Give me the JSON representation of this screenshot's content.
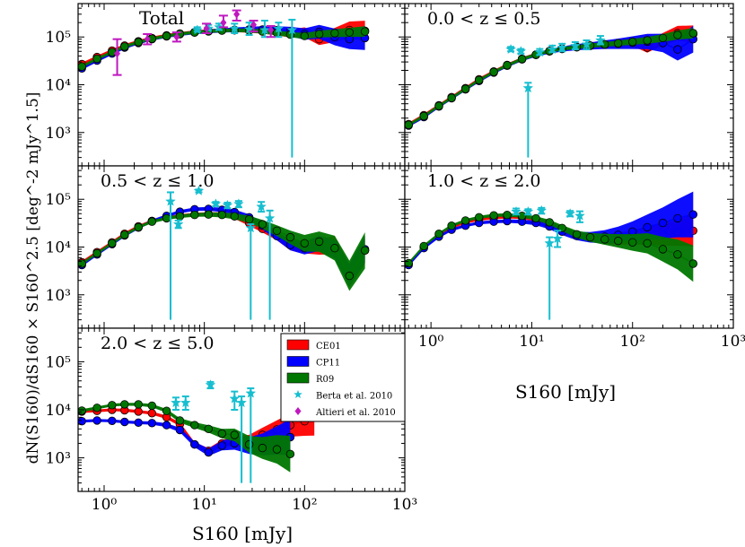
{
  "figure": {
    "ylabel": "dN(S160)/dS160 × S160^2.5  [deg^-2 mJy^1.5]",
    "xlabel": "S160 [mJy]"
  },
  "colors": {
    "CE01": "#ff0000",
    "CP11": "#0000ff",
    "R09": "#007700",
    "Berta": "#17becf",
    "Altieri": "#bf18bf"
  },
  "legend": {
    "items": [
      {
        "key": "CE01",
        "label": "CE01",
        "kind": "band"
      },
      {
        "key": "CP11",
        "label": "CP11",
        "kind": "band"
      },
      {
        "key": "R09",
        "label": "R09",
        "kind": "band"
      },
      {
        "key": "Berta",
        "label": "Berta et al. 2010",
        "kind": "star"
      },
      {
        "key": "Altieri",
        "label": "Altieri et al. 2010",
        "kind": "diamond"
      }
    ]
  },
  "chart_data": [
    {
      "type": "line",
      "title": "Total",
      "xscale": "log",
      "yscale": "log",
      "xlim": [
        0.55,
        1000
      ],
      "ylim": [
        200,
        500000
      ],
      "xticks": [
        1,
        10,
        100,
        1000
      ],
      "xticklabels": [
        "",
        "",
        "",
        ""
      ],
      "yticks": [
        1000,
        10000,
        100000
      ],
      "yticklabels": [
        "10^3",
        "10^4",
        "10^5"
      ],
      "x": [
        0.6,
        0.85,
        1.2,
        1.6,
        2.2,
        3.0,
        4.2,
        5.7,
        8,
        11,
        15,
        20,
        28,
        38,
        53,
        72,
        100,
        140,
        200,
        280,
        400
      ],
      "series": [
        {
          "name": "CE01",
          "values": [
            27000,
            38000,
            52000,
            66000,
            81000,
            95000,
            108000,
            118000,
            127000,
            134000,
            138000,
            140000,
            139000,
            135000,
            128000,
            118000,
            125000,
            90000,
            110000,
            140000,
            135000
          ],
          "band_tail": 0.18
        },
        {
          "name": "CP11",
          "values": [
            22000,
            32000,
            45000,
            60000,
            75000,
            90000,
            103000,
            114000,
            124000,
            131000,
            137000,
            141000,
            144000,
            143000,
            139000,
            130000,
            115000,
            128000,
            100000,
            90000,
            95000
          ],
          "band_tail": 0.22
        },
        {
          "name": "R09",
          "values": [
            24000,
            35000,
            48000,
            63000,
            78000,
            92000,
            105000,
            116000,
            125000,
            132000,
            136000,
            138000,
            136000,
            130000,
            122000,
            112000,
            105000,
            115000,
            120000,
            125000,
            130000
          ],
          "band_tail": 0.08
        }
      ],
      "berta": [
        {
          "x": 8.5,
          "y": 140000,
          "lo": 130000,
          "hi": 160000
        },
        {
          "x": 11,
          "y": 150000,
          "lo": 140000,
          "hi": 180000
        },
        {
          "x": 14,
          "y": 160000,
          "lo": 140000,
          "hi": 190000
        },
        {
          "x": 20,
          "y": 150000,
          "lo": 120000,
          "hi": 190000
        },
        {
          "x": 28,
          "y": 145000,
          "lo": 110000,
          "hi": 200000
        },
        {
          "x": 40,
          "y": 140000,
          "lo": 100000,
          "hi": 220000
        },
        {
          "x": 55,
          "y": 150000,
          "lo": 100000,
          "hi": 200000
        },
        {
          "x": 75,
          "y": 140000,
          "lo": 300,
          "hi": 230000
        }
      ],
      "altieri": [
        {
          "x": 1.35,
          "y": 45000,
          "lo": 16000,
          "hi": 90000
        },
        {
          "x": 2.7,
          "y": 90000,
          "lo": 70000,
          "hi": 115000
        },
        {
          "x": 5.3,
          "y": 100000,
          "lo": 80000,
          "hi": 125000
        },
        {
          "x": 10.5,
          "y": 150000,
          "lo": 120000,
          "hi": 190000
        },
        {
          "x": 15.5,
          "y": 200000,
          "lo": 160000,
          "hi": 280000
        },
        {
          "x": 21,
          "y": 300000,
          "lo": 220000,
          "hi": 360000
        },
        {
          "x": 31,
          "y": 180000,
          "lo": 130000,
          "hi": 220000
        },
        {
          "x": 46,
          "y": 140000,
          "lo": 100000,
          "hi": 170000
        }
      ]
    },
    {
      "type": "line",
      "title": "0.0 < z ≤ 0.5",
      "xscale": "log",
      "yscale": "log",
      "xlim": [
        0.55,
        1000
      ],
      "ylim": [
        200,
        500000
      ],
      "xticks": [
        1,
        10,
        100,
        1000
      ],
      "xticklabels": [
        "",
        "",
        "",
        ""
      ],
      "yticks": [
        1000,
        10000,
        100000
      ],
      "yticklabels": [
        "",
        "",
        ""
      ],
      "x": [
        0.6,
        0.85,
        1.2,
        1.6,
        2.2,
        3.0,
        4.2,
        5.7,
        8,
        11,
        15,
        20,
        28,
        38,
        53,
        72,
        100,
        140,
        200,
        280,
        400
      ],
      "series": [
        {
          "name": "CE01",
          "values": [
            1500,
            2300,
            3700,
            5500,
            8500,
            13000,
            19000,
            26000,
            35000,
            43000,
            51000,
            57000,
            62000,
            66000,
            70000,
            74000,
            80000,
            60000,
            90000,
            120000,
            115000
          ],
          "band_tail": 0.15
        },
        {
          "name": "CP11",
          "values": [
            1400,
            2100,
            3500,
            5200,
            8000,
            12000,
            18000,
            25000,
            34000,
            42000,
            50000,
            56000,
            61000,
            65000,
            69000,
            72000,
            76000,
            80000,
            75000,
            55000,
            90000
          ],
          "band_tail": 0.25
        },
        {
          "name": "R09",
          "values": [
            1450,
            2200,
            3600,
            5300,
            8200,
            12500,
            18500,
            25500,
            34500,
            42500,
            50500,
            56500,
            61500,
            66000,
            70000,
            74000,
            79000,
            85000,
            95000,
            110000,
            120000
          ],
          "band_tail": 0.08
        }
      ],
      "berta": [
        {
          "x": 6.2,
          "y": 55000,
          "lo": 50000,
          "hi": 62000
        },
        {
          "x": 7.8,
          "y": 50000,
          "lo": 45000,
          "hi": 56000
        },
        {
          "x": 9.2,
          "y": 8500,
          "lo": 300,
          "hi": 11000
        },
        {
          "x": 12,
          "y": 48000,
          "lo": 42000,
          "hi": 56000
        },
        {
          "x": 16,
          "y": 55000,
          "lo": 48000,
          "hi": 66000
        },
        {
          "x": 20,
          "y": 60000,
          "lo": 50000,
          "hi": 72000
        },
        {
          "x": 27,
          "y": 65000,
          "lo": 55000,
          "hi": 78000
        },
        {
          "x": 35,
          "y": 70000,
          "lo": 55000,
          "hi": 85000
        },
        {
          "x": 48,
          "y": 85000,
          "lo": 70000,
          "hi": 105000
        }
      ],
      "altieri": []
    },
    {
      "type": "line",
      "title": "0.5 < z ≤ 1.0",
      "xscale": "log",
      "yscale": "log",
      "xlim": [
        0.55,
        1000
      ],
      "ylim": [
        200,
        500000
      ],
      "xticks": [
        1,
        10,
        100,
        1000
      ],
      "xticklabels": [
        "",
        "",
        "",
        ""
      ],
      "yticks": [
        1000,
        10000,
        100000
      ],
      "yticklabels": [
        "10^3",
        "10^4",
        "10^5"
      ],
      "x": [
        0.6,
        0.85,
        1.2,
        1.6,
        2.2,
        3.0,
        4.2,
        5.7,
        8,
        11,
        15,
        20,
        28,
        38,
        53,
        72,
        100,
        140,
        200,
        280,
        400
      ],
      "series": [
        {
          "name": "CE01",
          "values": [
            4800,
            7800,
            12500,
            19000,
            27000,
            35000,
            41000,
            45000,
            48000,
            49000,
            48000,
            44000,
            32000,
            24000,
            17000,
            11000,
            10000,
            10000,
            11000,
            2500,
            8500
          ],
          "band_tail": 0.25
        },
        {
          "name": "CP11",
          "values": [
            4200,
            7000,
            11500,
            17500,
            25500,
            35000,
            45000,
            55000,
            62000,
            63000,
            60000,
            54000,
            42000,
            28000,
            17000,
            11000,
            9500,
            12000,
            9000,
            2600,
            9000
          ],
          "band_tail": 0.25
        },
        {
          "name": "R09",
          "values": [
            4500,
            7400,
            12000,
            18000,
            26000,
            34000,
            40000,
            44000,
            47000,
            48000,
            47000,
            44000,
            38000,
            30000,
            22000,
            16000,
            12000,
            13000,
            9500,
            2500,
            8500
          ],
          "band_tail": 0.35
        }
      ],
      "berta": [
        {
          "x": 4.6,
          "y": 90000,
          "lo": 300,
          "hi": 140000
        },
        {
          "x": 5.5,
          "y": 30000,
          "lo": 25000,
          "hi": 36000
        },
        {
          "x": 8.8,
          "y": 150000,
          "lo": 140000,
          "hi": 160000
        },
        {
          "x": 13,
          "y": 80000,
          "lo": 72000,
          "hi": 88000
        },
        {
          "x": 17,
          "y": 75000,
          "lo": 65000,
          "hi": 85000
        },
        {
          "x": 22,
          "y": 80000,
          "lo": 68000,
          "hi": 92000
        },
        {
          "x": 29,
          "y": 25000,
          "lo": 300,
          "hi": 30000
        },
        {
          "x": 37,
          "y": 70000,
          "lo": 55000,
          "hi": 88000
        },
        {
          "x": 45,
          "y": 40000,
          "lo": 300,
          "hi": 58000
        }
      ],
      "altieri": []
    },
    {
      "type": "line",
      "title": "1.0 < z ≤ 2.0",
      "xscale": "log",
      "yscale": "log",
      "xlim": [
        0.55,
        1000
      ],
      "ylim": [
        200,
        500000
      ],
      "xticks": [
        1,
        10,
        100,
        1000
      ],
      "xticklabels": [
        "",
        "",
        "",
        ""
      ],
      "yticks": [
        1000,
        10000,
        100000
      ],
      "yticklabels": [
        "",
        "",
        ""
      ],
      "x": [
        0.6,
        0.85,
        1.2,
        1.6,
        2.2,
        3.0,
        4.2,
        5.7,
        8,
        11,
        15,
        20,
        28,
        38,
        53,
        72,
        100,
        140,
        200,
        280,
        400
      ],
      "series": [
        {
          "name": "CE01",
          "values": [
            4500,
            10000,
            18000,
            26000,
            33000,
            38000,
            41000,
            43000,
            42000,
            38000,
            32000,
            24000,
            18000,
            16000,
            15000,
            15000,
            16000,
            17000,
            18000,
            20000,
            22000
          ],
          "band_tail": 0.3
        },
        {
          "name": "CP11",
          "values": [
            4200,
            9500,
            16500,
            23000,
            28000,
            32000,
            34000,
            35000,
            34000,
            32000,
            27000,
            21000,
            17000,
            16000,
            16500,
            18000,
            21000,
            26000,
            32000,
            40000,
            48000
          ],
          "band_tail": 0.45
        },
        {
          "name": "R09",
          "values": [
            4600,
            10500,
            19000,
            28000,
            36000,
            42000,
            46000,
            47000,
            45000,
            40000,
            33000,
            25000,
            18500,
            16000,
            14500,
            13500,
            12500,
            12000,
            9000,
            7000,
            4500
          ],
          "band_tail": 0.35
        }
      ],
      "berta": [
        {
          "x": 7,
          "y": 55000,
          "lo": 48000,
          "hi": 64000
        },
        {
          "x": 9.2,
          "y": 55000,
          "lo": 48000,
          "hi": 62000
        },
        {
          "x": 12.5,
          "y": 58000,
          "lo": 50000,
          "hi": 66000
        },
        {
          "x": 15,
          "y": 12000,
          "lo": 300,
          "hi": 16000
        },
        {
          "x": 18,
          "y": 15000,
          "lo": 10000,
          "hi": 22000
        },
        {
          "x": 24,
          "y": 50000,
          "lo": 44000,
          "hi": 57000
        },
        {
          "x": 30,
          "y": 45000,
          "lo": 33000,
          "hi": 56000
        }
      ],
      "altieri": []
    },
    {
      "type": "line",
      "title": "2.0 < z ≤ 5.0",
      "xscale": "log",
      "yscale": "log",
      "xlim": [
        0.55,
        1000
      ],
      "ylim": [
        200,
        500000
      ],
      "xticks": [
        1,
        10,
        100,
        1000
      ],
      "xticklabels": [
        "10^0",
        "10^1",
        "10^2",
        "10^3"
      ],
      "yticks": [
        1000,
        10000,
        100000
      ],
      "yticklabels": [
        "10^3",
        "10^4",
        "10^5"
      ],
      "x": [
        0.6,
        0.85,
        1.2,
        1.6,
        2.2,
        3.0,
        4.2,
        5.7,
        8,
        11,
        15,
        20,
        28,
        38,
        53,
        72,
        100,
        125
      ],
      "series": [
        {
          "name": "CE01",
          "values": [
            9200,
            9500,
            10000,
            9800,
            9200,
            8500,
            7000,
            5000,
            1900,
            1400,
            2000,
            2200,
            2300,
            3000,
            3900,
            4800,
            5800,
            7000
          ],
          "band_tail": 0.35
        },
        {
          "name": "CP11",
          "values": [
            5800,
            6000,
            5900,
            5600,
            5400,
            5300,
            4800,
            3800,
            1900,
            1300,
            1800,
            2000,
            1800,
            1900,
            2300,
            2700,
            null,
            null
          ],
          "band_tail": 0.35
        },
        {
          "name": "R09",
          "values": [
            9600,
            11000,
            12500,
            13000,
            13000,
            12200,
            9500,
            6000,
            4800,
            4000,
            3200,
            3000,
            1900,
            1600,
            1500,
            1200,
            null,
            null
          ],
          "band_tail": 0.35
        }
      ],
      "berta": [
        {
          "x": 5.2,
          "y": 14000,
          "lo": 10000,
          "hi": 18000
        },
        {
          "x": 6.5,
          "y": 14000,
          "lo": 10000,
          "hi": 19000
        },
        {
          "x": 11.5,
          "y": 33000,
          "lo": 28000,
          "hi": 38000
        },
        {
          "x": 20,
          "y": 17000,
          "lo": 10000,
          "hi": 24000
        },
        {
          "x": 23.5,
          "y": 14000,
          "lo": 300,
          "hi": 19000
        },
        {
          "x": 29,
          "y": 22000,
          "lo": 300,
          "hi": 28000
        }
      ],
      "altieri": []
    }
  ]
}
